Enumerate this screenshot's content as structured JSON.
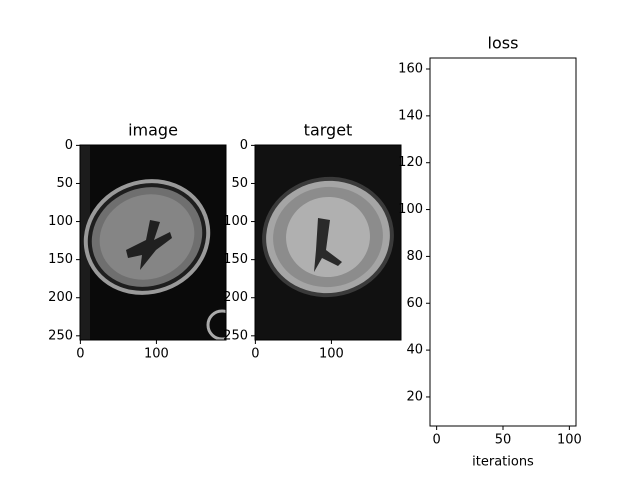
{
  "chart_data": [
    {
      "type": "image",
      "title": "image",
      "xlim": [
        -0.5,
        191.5
      ],
      "ylim": [
        255.5,
        -0.5
      ],
      "xticks": [
        0,
        100
      ],
      "yticks": [
        0,
        50,
        100,
        150,
        200,
        250
      ]
    },
    {
      "type": "image",
      "title": "target",
      "xlim": [
        -0.5,
        191.5
      ],
      "ylim": [
        255.5,
        -0.5
      ],
      "xticks": [
        0,
        100
      ],
      "yticks": [
        0,
        50,
        100,
        150,
        200,
        250
      ]
    },
    {
      "type": "line",
      "title": "loss",
      "xlabel": "iterations",
      "xlim": [
        -5,
        105
      ],
      "ylim": [
        7.6,
        164.7
      ],
      "xticks": [
        0,
        50,
        100
      ],
      "yticks": [
        20,
        40,
        60,
        80,
        100,
        120,
        140,
        160
      ]
    }
  ]
}
